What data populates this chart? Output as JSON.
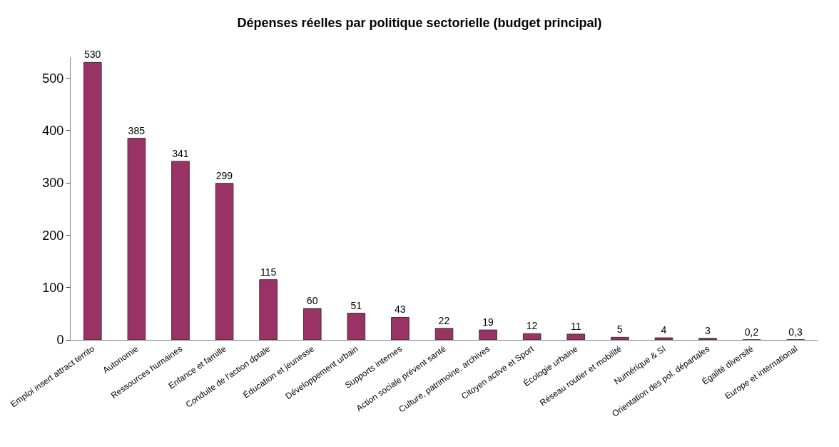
{
  "chart_data": {
    "type": "bar",
    "title": "Dépenses réelles par politique sectorielle (budget principal)",
    "categories": [
      "Emploi insert attract territo",
      "Autonomie",
      "Ressources humaines",
      "Enfance et famille",
      "Conduite de l'action dptale",
      "Éducation et jeunesse",
      "Développement urbain",
      "Supports internes",
      "Action sociale prévent santé",
      "Culture, patrimoine, archives",
      "Citoyen active et Sport",
      "Écologie urbaine",
      "Réseau routier et mobilité",
      "Numérique & SI",
      "Orientation des pol. départales",
      "Égalité diversité",
      "Europe et international"
    ],
    "values": [
      530,
      385,
      341,
      299,
      115,
      60,
      51,
      43,
      22,
      19,
      12,
      11,
      5,
      4,
      3,
      0.2,
      0.3
    ],
    "value_labels": [
      "530",
      "385",
      "341",
      "299",
      "115",
      "60",
      "51",
      "43",
      "22",
      "19",
      "12",
      "11",
      "5",
      "4",
      "3",
      "0,2",
      "0,3"
    ],
    "color": "#993366",
    "ylim": [
      0,
      540
    ],
    "yticks": [
      0,
      100,
      200,
      300,
      400,
      500
    ]
  }
}
